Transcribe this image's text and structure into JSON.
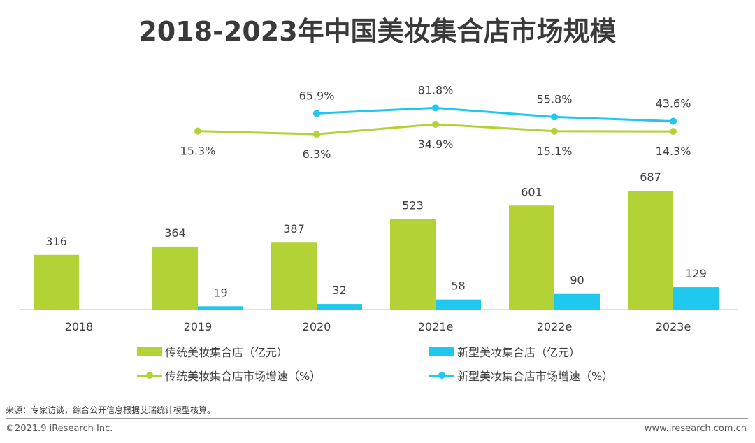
{
  "chart_data": {
    "type": "bar+line",
    "title": "2018-2023年中国美妆集合店市场规模",
    "categories": [
      "2018",
      "2019",
      "2020",
      "2021e",
      "2022e",
      "2023e"
    ],
    "series": [
      {
        "name": "传统美妆集合店（亿元）",
        "kind": "bar",
        "color": "#b2d235",
        "values": [
          316,
          364,
          387,
          523,
          601,
          687
        ]
      },
      {
        "name": "新型美妆集合店（亿元）",
        "kind": "bar",
        "color": "#1fc8ef",
        "values": [
          null,
          19,
          32,
          58,
          90,
          129
        ]
      },
      {
        "name": "传统美妆集合店市场增速（%）",
        "kind": "line",
        "color": "#b2d235",
        "values": [
          null,
          15.3,
          6.3,
          34.9,
          15.1,
          14.3
        ],
        "labels": [
          "",
          "15.3%",
          "6.3%",
          "34.9%",
          "15.1%",
          "14.3%"
        ]
      },
      {
        "name": "新型美妆集合店市场增速（%）",
        "kind": "line",
        "color": "#1fc8ef",
        "values": [
          null,
          null,
          65.9,
          81.8,
          55.8,
          43.6
        ],
        "labels": [
          "",
          "",
          "65.9%",
          "81.8%",
          "55.8%",
          "43.6%"
        ]
      }
    ],
    "legend_position": "bottom",
    "grid": false
  },
  "footer": {
    "source": "来源：专家访谈，综合公开信息根据艾瑞统计模型核算。",
    "copyright": "©2021.9 iResearch Inc.",
    "website": "www.iresearch.com.cn"
  }
}
